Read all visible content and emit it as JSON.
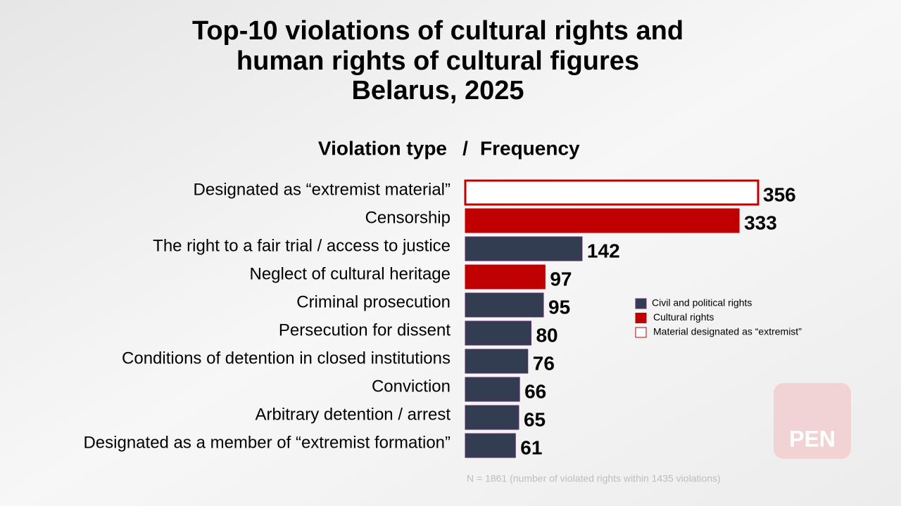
{
  "chart_data": {
    "type": "hbar",
    "title": [
      "Top-10 violations of cultural rights and",
      "human rights of cultural figures",
      "Belarus, 2025"
    ],
    "subtitle_left": "Violation type",
    "subtitle_sep": "/",
    "subtitle_right": "Frequency",
    "categories": [
      "Designated as “extremist material”",
      "Censorship",
      "The right to a fair trial / access to justice",
      "Neglect of cultural heritage",
      "Criminal prosecution",
      "Persecution for dissent",
      "Conditions of detention in closed institutions",
      "Conviction",
      "Arbitrary detention / arrest",
      "Designated as a member of “extremist formation”"
    ],
    "series": [
      {
        "name": "Civil and political rights",
        "color": "#333d52",
        "stroke": "#5a2a6a",
        "values": [
          null,
          null,
          142,
          null,
          95,
          80,
          76,
          66,
          65,
          61
        ]
      },
      {
        "name": "Cultural rights",
        "color": "#c00000",
        "stroke": "#c00000",
        "values": [
          null,
          333,
          null,
          97,
          null,
          null,
          null,
          null,
          null,
          null
        ]
      },
      {
        "name": "Material designated as “extremist”",
        "color": "#ffffff",
        "stroke": "#c00000",
        "values": [
          356,
          null,
          null,
          null,
          null,
          null,
          null,
          null,
          null,
          null
        ]
      }
    ],
    "note": "N = 1861 (number of violated rights within 1435 violations)",
    "logo_text": "PEN"
  }
}
